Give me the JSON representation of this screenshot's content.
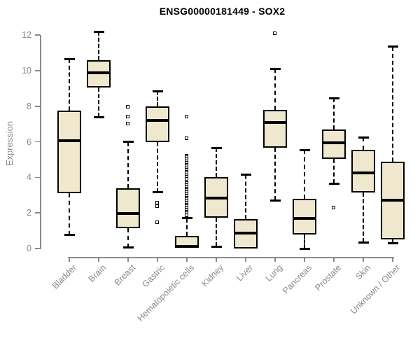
{
  "chart_data": {
    "type": "boxplot",
    "title": "ENSG00000181449 - SOX2",
    "xlabel": "",
    "ylabel": "Expression",
    "ylim": [
      0,
      12
    ],
    "yticks": [
      0,
      2,
      4,
      6,
      8,
      10,
      12
    ],
    "grid": false,
    "legend": null,
    "categories": [
      "Bladder",
      "Brain",
      "Breast",
      "Gastric",
      "Hematopoietic cells",
      "Kidney",
      "Liver",
      "Lung",
      "Pancreas",
      "Prostate",
      "Skin",
      "Unknown / Other"
    ],
    "boxes": [
      {
        "category": "Bladder",
        "whisker_low": 0.75,
        "q1": 3.1,
        "median": 6.05,
        "q3": 7.75,
        "whisker_high": 10.65,
        "outliers": []
      },
      {
        "category": "Brain",
        "whisker_low": 7.4,
        "q1": 9.05,
        "median": 9.9,
        "q3": 10.6,
        "whisker_high": 12.2,
        "outliers": []
      },
      {
        "category": "Breast",
        "whisker_low": 0.05,
        "q1": 1.15,
        "median": 1.95,
        "q3": 3.4,
        "whisker_high": 6.0,
        "outliers": [
          7.95,
          7.4,
          7.0
        ]
      },
      {
        "category": "Gastric",
        "whisker_low": 3.15,
        "q1": 6.0,
        "median": 7.2,
        "q3": 8.0,
        "whisker_high": 8.85,
        "outliers": [
          2.55,
          2.35,
          1.45
        ]
      },
      {
        "category": "Hematopoietic cells",
        "whisker_low": 0.02,
        "q1": 0.02,
        "median": 0.1,
        "q3": 0.7,
        "whisker_high": 1.7,
        "outliers": [
          7.4,
          6.2,
          5.2,
          5.1,
          5.0,
          4.9,
          4.8,
          4.7,
          4.6,
          4.5,
          4.4,
          4.3,
          4.2,
          4.1,
          4.0,
          3.9,
          3.65,
          3.55,
          3.45,
          3.35,
          3.25,
          3.15,
          3.05,
          2.95,
          2.85,
          2.75,
          2.65,
          2.55,
          2.45,
          2.35,
          2.25,
          2.15,
          2.05,
          1.95,
          1.85
        ]
      },
      {
        "category": "Kidney",
        "whisker_low": 0.1,
        "q1": 1.75,
        "median": 2.85,
        "q3": 4.0,
        "whisker_high": 5.65,
        "outliers": []
      },
      {
        "category": "Liver",
        "whisker_low": 0.0,
        "q1": 0.0,
        "median": 0.85,
        "q3": 1.65,
        "whisker_high": 4.15,
        "outliers": []
      },
      {
        "category": "Lung",
        "whisker_low": 2.7,
        "q1": 5.65,
        "median": 7.1,
        "q3": 7.8,
        "whisker_high": 10.1,
        "outliers": [
          12.1
        ]
      },
      {
        "category": "Pancreas",
        "whisker_low": 0.0,
        "q1": 0.8,
        "median": 1.7,
        "q3": 2.8,
        "whisker_high": 5.55,
        "outliers": []
      },
      {
        "category": "Prostate",
        "whisker_low": 3.65,
        "q1": 5.05,
        "median": 5.95,
        "q3": 6.7,
        "whisker_high": 8.45,
        "outliers": [
          2.3
        ]
      },
      {
        "category": "Skin",
        "whisker_low": 0.35,
        "q1": 3.15,
        "median": 4.25,
        "q3": 5.55,
        "whisker_high": 6.25,
        "outliers": []
      },
      {
        "category": "Unknown / Other",
        "whisker_low": 0.3,
        "q1": 0.5,
        "median": 2.7,
        "q3": 4.9,
        "whisker_high": 11.35,
        "outliers": []
      }
    ],
    "colors": {
      "box_fill": "#efe8cf",
      "box_border": "#000000",
      "median": "#000000",
      "whisker": "#000000",
      "axis": "#8a8a8a",
      "title": "#000000",
      "background": "#ffffff"
    }
  }
}
